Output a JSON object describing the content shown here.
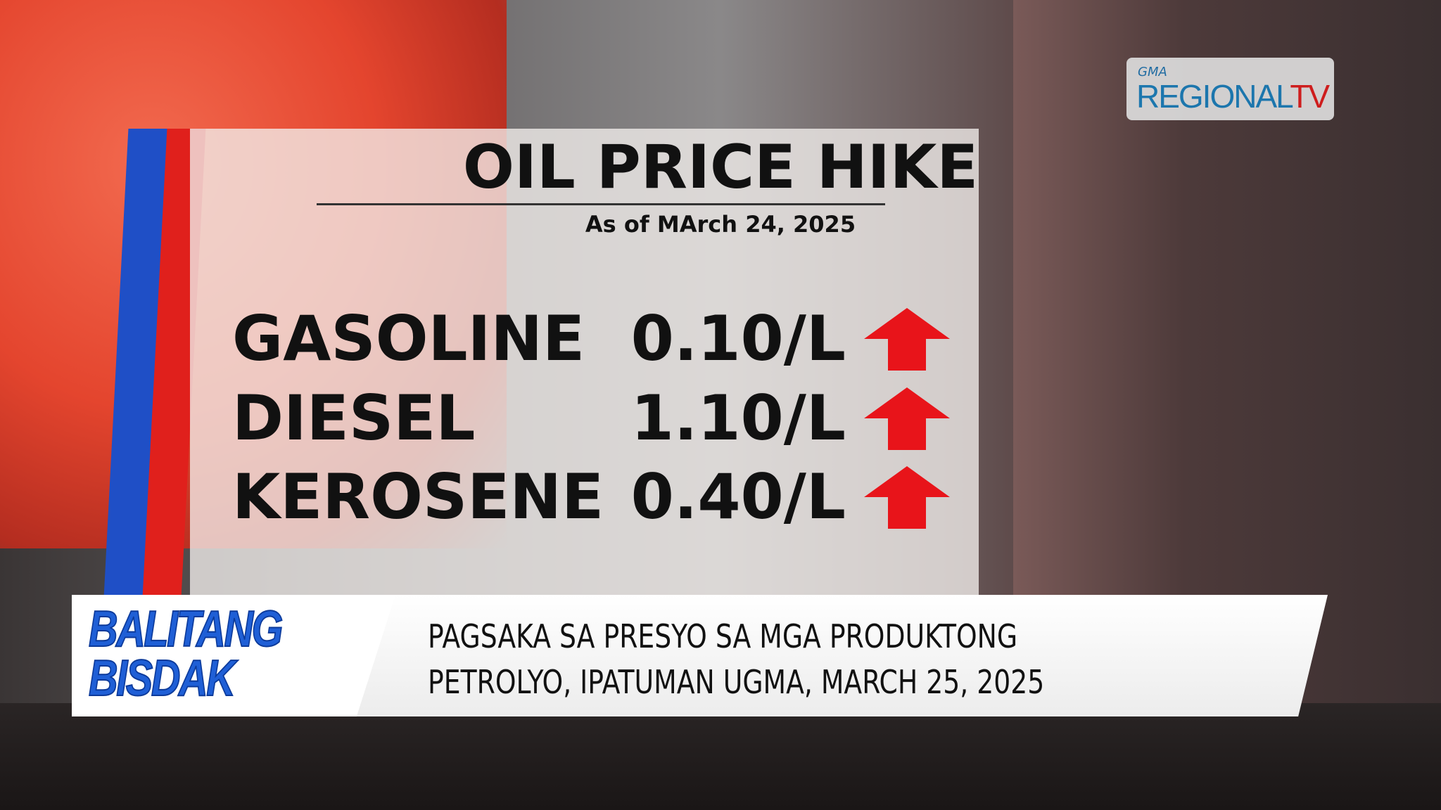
{
  "logo": {
    "gma": "GMA",
    "regional": "REGIONAL",
    "tv": "TV"
  },
  "card": {
    "title": "OIL PRICE HIKE",
    "subtitle": "As of MArch 24, 2025",
    "rows": [
      {
        "product": "GASOLINE",
        "change": "0.10/L",
        "direction": "up"
      },
      {
        "product": "DIESEL",
        "change": "1.10/L",
        "direction": "up"
      },
      {
        "product": "KEROSENE",
        "change": "0.40/L",
        "direction": "up"
      }
    ],
    "arrow_color": "#e8141a"
  },
  "ticker": {
    "brand_line1": "BALITANG",
    "brand_line2": "BISDAK",
    "headline_line1": "PAGSAKA SA PRESYO SA MGA PRODUKTONG",
    "headline_line2": "PETROLYO, IPATUMAN UGMA, MARCH 25, 2025"
  }
}
